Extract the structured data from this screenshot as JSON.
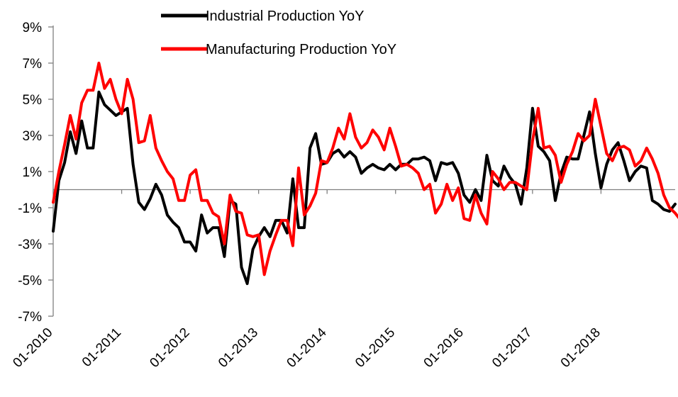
{
  "chart_data": {
    "type": "line",
    "title": "",
    "xlabel": "",
    "ylabel": "",
    "ylim": [
      -7,
      9
    ],
    "y_ticks": [
      "9%",
      "7%",
      "5%",
      "3%",
      "1%",
      "-1%",
      "-3%",
      "-5%",
      "-7%"
    ],
    "x_ticks": [
      "01-2010",
      "01-2011",
      "01-2012",
      "01-2013",
      "01-2014",
      "01-2015",
      "01-2016",
      "01-2017",
      "01-2018"
    ],
    "x_start": "2010-01",
    "x_end": "2018-12",
    "grid": false,
    "legend_position": "top-center",
    "series": [
      {
        "name": "Industrial Production YoY",
        "color": "#000000",
        "values": [
          -2.3,
          0.5,
          1.5,
          3.2,
          2.0,
          3.8,
          2.3,
          2.3,
          5.4,
          4.7,
          4.4,
          4.1,
          4.3,
          4.5,
          1.4,
          -0.7,
          -1.1,
          -0.5,
          0.3,
          -0.3,
          -1.4,
          -1.8,
          -2.1,
          -2.9,
          -2.9,
          -3.4,
          -1.4,
          -2.4,
          -2.1,
          -2.1,
          -3.7,
          -0.6,
          -0.8,
          -4.3,
          -5.2,
          -3.3,
          -2.6,
          -2.1,
          -2.6,
          -1.7,
          -1.7,
          -2.4,
          0.6,
          -2.1,
          -2.1,
          2.3,
          3.1,
          1.4,
          1.5,
          2.0,
          2.2,
          1.8,
          2.1,
          1.8,
          0.9,
          1.2,
          1.4,
          1.2,
          1.1,
          1.4,
          1.1,
          1.4,
          1.4,
          1.7,
          1.7,
          1.8,
          1.6,
          0.5,
          1.5,
          1.4,
          1.5,
          0.9,
          -0.3,
          -0.7,
          0.0,
          -0.6,
          1.9,
          0.5,
          0.2,
          1.3,
          0.7,
          0.3,
          -0.8,
          1.2,
          4.5,
          2.4,
          2.1,
          1.6,
          -0.6,
          0.9,
          1.8,
          1.7,
          1.7,
          3.0,
          4.3,
          2.0,
          0.1,
          1.4,
          2.2,
          2.6,
          1.6,
          0.5,
          1.0,
          1.3,
          1.2,
          -0.6,
          -0.8,
          -1.1,
          -1.2,
          -0.8
        ]
      },
      {
        "name": "Manufacturing Production YoY",
        "color": "#ff0000",
        "values": [
          -0.7,
          1.0,
          2.5,
          4.1,
          2.8,
          4.8,
          5.5,
          5.5,
          7.0,
          5.6,
          6.1,
          5.0,
          4.2,
          6.1,
          5.0,
          2.6,
          2.7,
          4.1,
          2.3,
          1.6,
          1.0,
          0.6,
          -0.6,
          -0.6,
          0.8,
          1.1,
          -0.6,
          -0.6,
          -1.3,
          -1.5,
          -3.0,
          -0.3,
          -1.2,
          -1.3,
          -2.5,
          -2.6,
          -2.5,
          -4.7,
          -3.4,
          -2.5,
          -1.7,
          -1.7,
          -3.1,
          1.2,
          -1.4,
          -0.9,
          -0.2,
          1.6,
          1.5,
          2.3,
          3.4,
          2.8,
          4.2,
          2.9,
          2.3,
          2.6,
          3.3,
          2.9,
          2.2,
          3.4,
          2.4,
          1.3,
          1.4,
          1.2,
          0.9,
          0.0,
          0.3,
          -1.3,
          -0.8,
          0.3,
          -0.6,
          0.1,
          -1.6,
          -1.7,
          -0.3,
          -1.3,
          -1.9,
          1.0,
          0.6,
          0.0,
          0.4,
          0.4,
          0.2,
          0.0,
          2.7,
          4.5,
          2.3,
          2.4,
          1.9,
          0.4,
          1.4,
          2.1,
          3.1,
          2.7,
          3.0,
          5.0,
          3.5,
          2.0,
          1.6,
          2.3,
          2.4,
          2.2,
          1.3,
          1.6,
          2.3,
          1.7,
          0.9,
          -0.3,
          -1.0,
          -1.3,
          -1.7,
          -2.2
        ]
      }
    ]
  }
}
